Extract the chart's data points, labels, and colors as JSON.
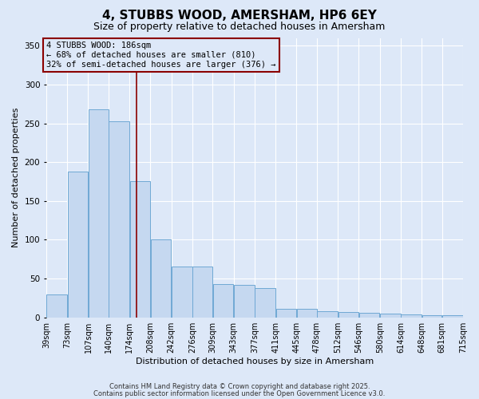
{
  "title": "4, STUBBS WOOD, AMERSHAM, HP6 6EY",
  "subtitle": "Size of property relative to detached houses in Amersham",
  "xlabel": "Distribution of detached houses by size in Amersham",
  "ylabel": "Number of detached properties",
  "background_color": "#dde8f8",
  "bar_color": "#c5d8f0",
  "bar_edge_color": "#6fa8d4",
  "bar_bins": [
    39,
    73,
    107,
    140,
    174,
    208,
    242,
    276,
    309,
    343,
    377,
    411,
    445,
    478,
    512,
    546,
    580,
    614,
    648,
    681,
    715
  ],
  "bar_values": [
    30,
    188,
    268,
    253,
    175,
    100,
    65,
    65,
    43,
    42,
    38,
    11,
    11,
    8,
    7,
    6,
    5,
    4,
    3,
    3
  ],
  "vline_x": 186,
  "vline_color": "#8b0000",
  "ylim": [
    0,
    360
  ],
  "yticks": [
    0,
    50,
    100,
    150,
    200,
    250,
    300,
    350
  ],
  "annotation_text": "4 STUBBS WOOD: 186sqm\n← 68% of detached houses are smaller (810)\n32% of semi-detached houses are larger (376) →",
  "tick_labels": [
    "39sqm",
    "73sqm",
    "107sqm",
    "140sqm",
    "174sqm",
    "208sqm",
    "242sqm",
    "276sqm",
    "309sqm",
    "343sqm",
    "377sqm",
    "411sqm",
    "445sqm",
    "478sqm",
    "512sqm",
    "546sqm",
    "580sqm",
    "614sqm",
    "648sqm",
    "681sqm",
    "715sqm"
  ],
  "title_fontsize": 11,
  "subtitle_fontsize": 9,
  "label_fontsize": 8,
  "tick_fontsize": 7,
  "ann_fontsize": 7.5,
  "footer_line1": "Contains HM Land Registry data © Crown copyright and database right 2025.",
  "footer_line2": "Contains public sector information licensed under the Open Government Licence v3.0."
}
